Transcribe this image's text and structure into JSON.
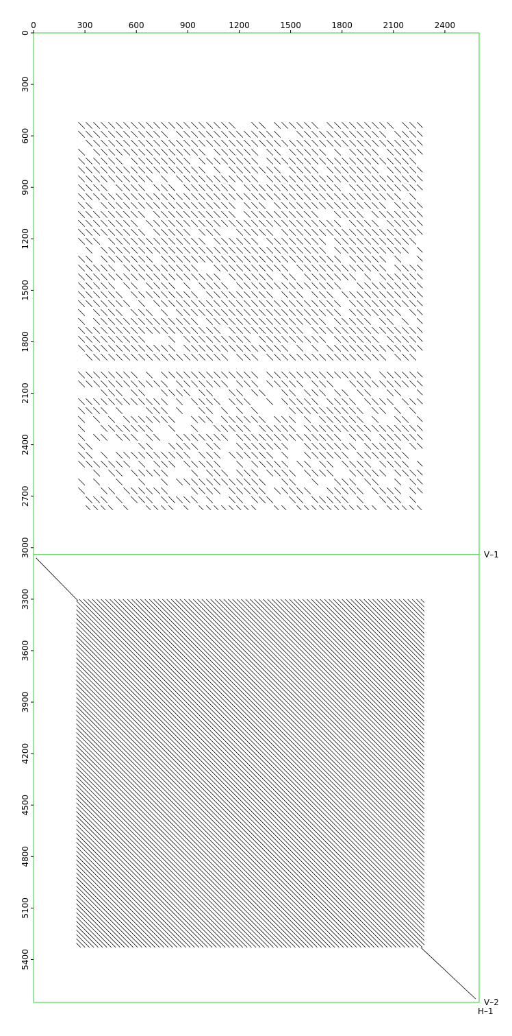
{
  "chart_data": {
    "type": "scatter",
    "title": "",
    "xlabel": "",
    "ylabel": "",
    "xlim": [
      0,
      2600
    ],
    "ylim": [
      0,
      5650
    ],
    "x_ticks": [
      0,
      300,
      600,
      900,
      1200,
      1500,
      1800,
      2100,
      2400
    ],
    "y_ticks": [
      0,
      300,
      600,
      900,
      1200,
      1500,
      1800,
      2100,
      2400,
      2700,
      3000,
      3300,
      3600,
      3900,
      4200,
      4500,
      4800,
      5100,
      5400
    ],
    "reference_lines": [
      {
        "label": "V–1",
        "orientation": "horizontal",
        "value": 3040,
        "color": "#33cc33"
      },
      {
        "label": "V–2",
        "orientation": "horizontal",
        "value": 5650,
        "color": "#33cc33"
      },
      {
        "label": "H–1",
        "orientation": "vertical",
        "value": 2600,
        "color": "#33cc33"
      }
    ],
    "blocks": [
      {
        "name": "upper-alignment-block",
        "x_range": [
          255,
          2270
        ],
        "y_range": [
          520,
          2780
        ],
        "pattern": "sparse-diagonal"
      },
      {
        "name": "lower-alignment-block",
        "x_range": [
          250,
          2280
        ],
        "y_range": [
          3300,
          5330
        ],
        "pattern": "dense-diagonal"
      }
    ],
    "connectors": [
      {
        "name": "lower-start-connector",
        "from": [
          15,
          3060
        ],
        "to": [
          260,
          3310
        ]
      },
      {
        "name": "lower-end-connector",
        "from": [
          2260,
          5330
        ],
        "to": [
          2580,
          5630
        ]
      }
    ],
    "colors": {
      "axis": "#33cc33",
      "marks": "#000000"
    }
  }
}
